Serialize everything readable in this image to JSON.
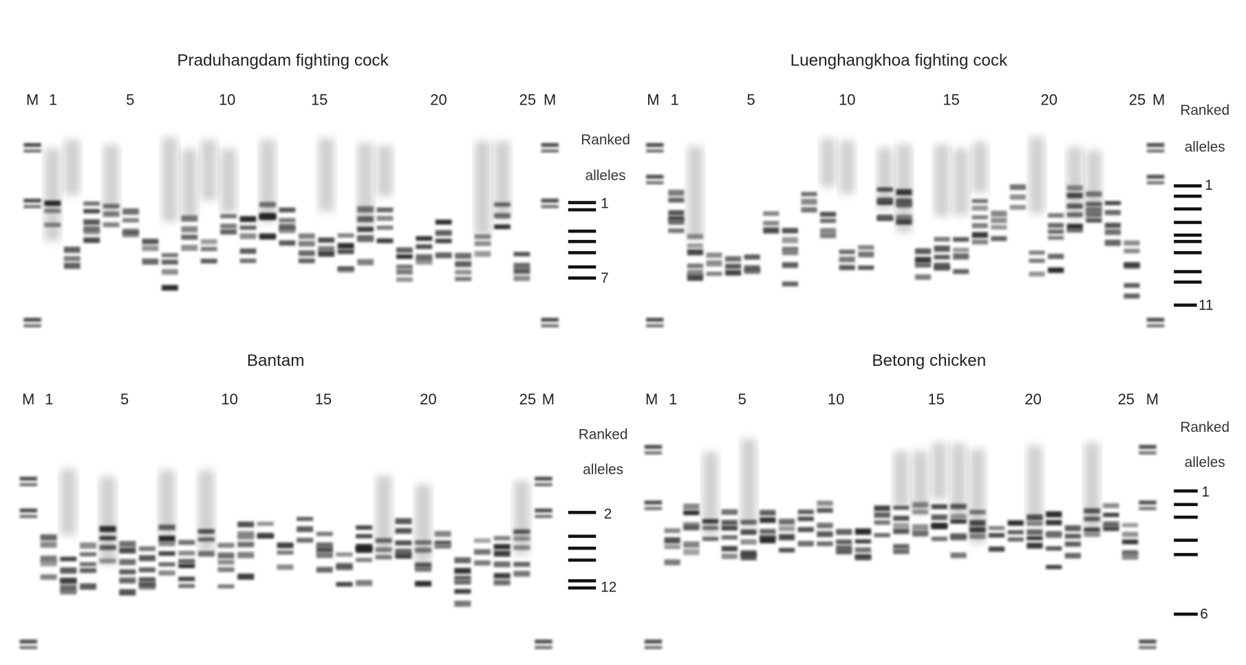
{
  "panels": [
    {
      "title": "Praduhangdam fighting cock",
      "lane_labels": [
        "M",
        "1",
        "5",
        "10",
        "15",
        "20",
        "25",
        "M"
      ],
      "ranked_label": [
        "Ranked",
        "alleles"
      ],
      "allele_labels": [
        "1",
        "7"
      ]
    },
    {
      "title": "Luenghangkhoa fighting cock",
      "lane_labels": [
        "M",
        "1",
        "5",
        "10",
        "15",
        "20",
        "25",
        "M"
      ],
      "ranked_label": [
        "Ranked",
        "alleles"
      ],
      "allele_labels": [
        "1",
        "11"
      ]
    },
    {
      "title": "Bantam",
      "lane_labels": [
        "M",
        "1",
        "5",
        "10",
        "15",
        "20",
        "25",
        "M"
      ],
      "ranked_label": [
        "Ranked",
        "alleles"
      ],
      "allele_labels": [
        "2",
        "12"
      ]
    },
    {
      "title": "Betong chicken",
      "lane_labels": [
        "M",
        "1",
        "5",
        "10",
        "15",
        "20",
        "25",
        "M"
      ],
      "ranked_label": [
        "Ranked",
        "alleles"
      ],
      "allele_labels": [
        "1",
        "6"
      ]
    }
  ]
}
